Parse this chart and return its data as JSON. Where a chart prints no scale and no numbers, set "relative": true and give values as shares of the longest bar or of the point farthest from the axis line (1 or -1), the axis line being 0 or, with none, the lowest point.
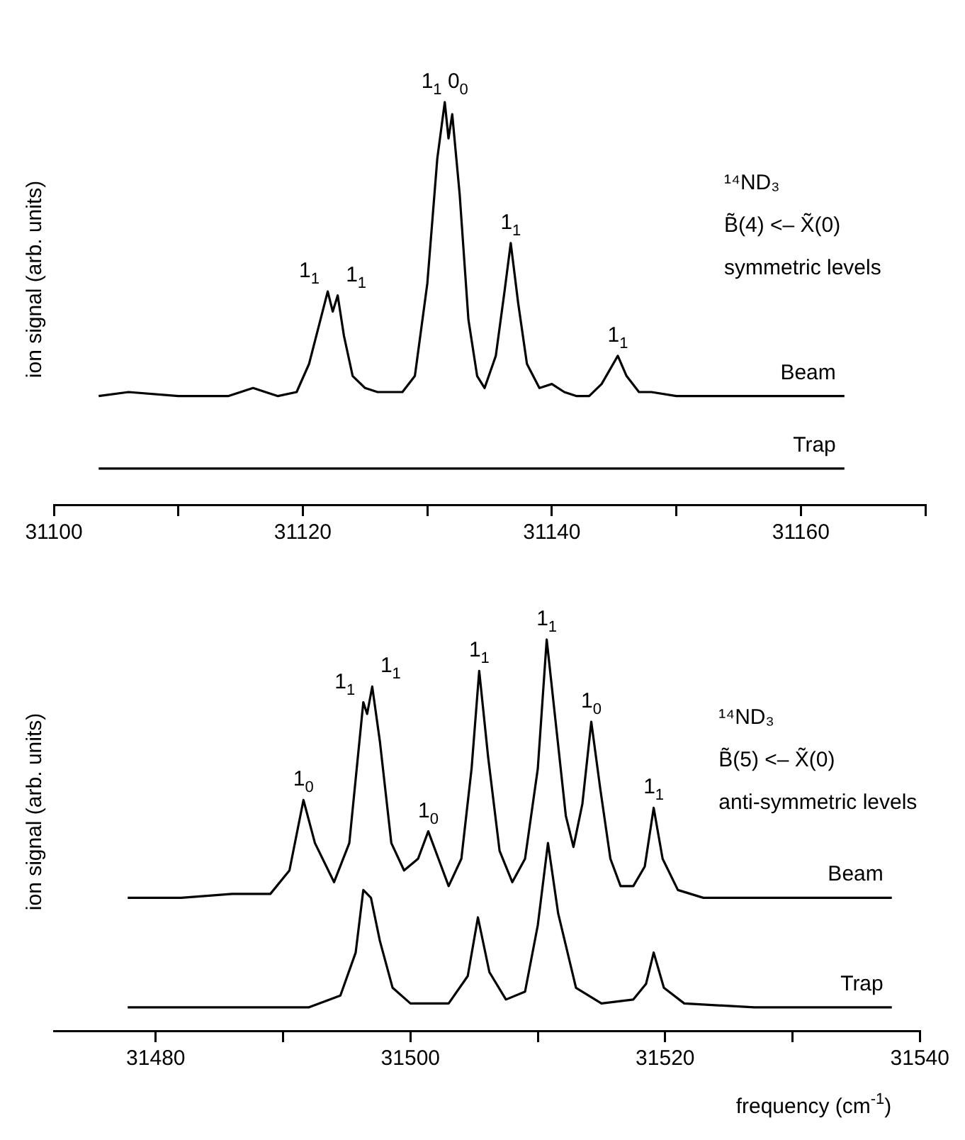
{
  "chart_data": [
    {
      "type": "line",
      "relative": true,
      "ylabel": "ion signal (arb. units)",
      "marker": "none",
      "grid": false,
      "xlim": [
        31100,
        31170
      ],
      "xticks": [
        31100,
        {
          "value": 31110,
          "label": null
        },
        31120,
        {
          "value": 31130,
          "label": null
        },
        31140,
        {
          "value": 31150,
          "label": null
        },
        31160,
        {
          "value": 31170,
          "label": null
        }
      ],
      "series": [
        {
          "name": "Beam",
          "color": "#000000",
          "x": [
            31103.6,
            31106,
            31110,
            31114,
            31116,
            31118,
            31119.5,
            31120.5,
            31121.5,
            31122.0,
            31122.4,
            31122.8,
            31123.3,
            31124,
            31125,
            31126,
            31128,
            31129,
            31130,
            31130.8,
            31131.4,
            31131.7,
            31132.0,
            31132.6,
            31133.3,
            31134,
            31134.6,
            31135.5,
            31136.2,
            31136.7,
            31137.3,
            31138,
            31139,
            31140,
            31141,
            31142,
            31143,
            31144,
            31145.3,
            31146,
            31147,
            31148,
            31150,
            31155,
            31160,
            31163.5
          ],
          "values": [
            0.27,
            0.28,
            0.27,
            0.27,
            0.29,
            0.27,
            0.28,
            0.35,
            0.47,
            0.53,
            0.48,
            0.52,
            0.42,
            0.32,
            0.29,
            0.28,
            0.28,
            0.32,
            0.55,
            0.86,
            1.0,
            0.91,
            0.97,
            0.77,
            0.46,
            0.32,
            0.29,
            0.37,
            0.53,
            0.65,
            0.5,
            0.35,
            0.29,
            0.3,
            0.28,
            0.27,
            0.27,
            0.3,
            0.37,
            0.32,
            0.28,
            0.28,
            0.27,
            0.27,
            0.27,
            0.27
          ]
        },
        {
          "name": "Trap",
          "color": "#000000",
          "x": [
            31103.6,
            31163.5
          ],
          "values": [
            0.09,
            0.09
          ]
        }
      ],
      "annotations": [
        {
          "text": "1$_{1}$",
          "x": 31122.0,
          "y": 0.53
        },
        {
          "text": "1$_{1}$",
          "x": 31122.8,
          "y": 0.52
        },
        {
          "text": "1$_{1}$ 0$_{0}$",
          "x": 31131.4,
          "y": 1.0
        },
        {
          "text": "1$_{1}$",
          "x": 31136.7,
          "y": 0.65
        },
        {
          "text": "1$_{1}$",
          "x": 31145.3,
          "y": 0.37
        },
        "¹⁴ND₃",
        "B̃(4) <– X̃(0)",
        "symmetric levels"
      ]
    },
    {
      "type": "line",
      "relative": true,
      "ylabel": "ion signal (arb. units)",
      "xlabel": "frequency (cm$^{-1}$)",
      "marker": "none",
      "grid": false,
      "xlim": [
        31472,
        31540
      ],
      "xticks": [
        31480,
        {
          "value": 31490,
          "label": null
        },
        31500,
        {
          "value": 31510,
          "label": null
        },
        31520,
        {
          "value": 31530,
          "label": null
        },
        31540
      ],
      "series": [
        {
          "name": "Beam",
          "color": "#000000",
          "x": [
            31477.8,
            31482,
            31486,
            31489,
            31490.5,
            31491.6,
            31492.5,
            31494,
            31495.2,
            31496.3,
            31496.6,
            31497.0,
            31497.6,
            31498.5,
            31499.5,
            31500.6,
            31501.4,
            31502.2,
            31503,
            31504,
            31504.8,
            31505.4,
            31506.1,
            31507,
            31508,
            31509,
            31510.0,
            31510.7,
            31511.4,
            31512.2,
            31512.8,
            31513.5,
            31514.2,
            31514.9,
            31515.7,
            31516.5,
            31517.5,
            31518.4,
            31519.1,
            31519.8,
            31521,
            31523,
            31527,
            31532,
            31537.8
          ],
          "values": [
            0.34,
            0.34,
            0.35,
            0.35,
            0.41,
            0.59,
            0.48,
            0.38,
            0.48,
            0.84,
            0.81,
            0.88,
            0.74,
            0.48,
            0.41,
            0.44,
            0.51,
            0.44,
            0.37,
            0.44,
            0.67,
            0.92,
            0.7,
            0.46,
            0.38,
            0.44,
            0.67,
            1.0,
            0.79,
            0.55,
            0.47,
            0.58,
            0.79,
            0.62,
            0.44,
            0.37,
            0.37,
            0.42,
            0.57,
            0.44,
            0.36,
            0.34,
            0.34,
            0.34,
            0.34
          ]
        },
        {
          "name": "Trap",
          "color": "#000000",
          "x": [
            31477.8,
            31485,
            31492,
            31494.5,
            31495.7,
            31496.3,
            31496.9,
            31497.6,
            31498.6,
            31500,
            31503,
            31504.5,
            31505.3,
            31506.2,
            31507.5,
            31509,
            31510.0,
            31510.8,
            31511.6,
            31513,
            31515,
            31517.5,
            31518.5,
            31519.1,
            31519.9,
            31521.5,
            31527,
            31537.8
          ],
          "values": [
            0.06,
            0.06,
            0.06,
            0.09,
            0.2,
            0.36,
            0.34,
            0.23,
            0.11,
            0.07,
            0.07,
            0.14,
            0.29,
            0.15,
            0.08,
            0.1,
            0.27,
            0.48,
            0.3,
            0.11,
            0.07,
            0.08,
            0.12,
            0.2,
            0.11,
            0.07,
            0.06,
            0.06
          ]
        }
      ],
      "annotations": [
        {
          "text": "1$_{0}$",
          "x": 31491.6,
          "y": 0.59
        },
        {
          "text": "1$_{1}$",
          "x": 31496.3,
          "y": 0.84
        },
        {
          "text": "1$_{1}$",
          "x": 31497.0,
          "y": 0.88
        },
        {
          "text": "1$_{0}$",
          "x": 31501.4,
          "y": 0.51
        },
        {
          "text": "1$_{1}$",
          "x": 31505.4,
          "y": 0.92
        },
        {
          "text": "1$_{1}$",
          "x": 31510.7,
          "y": 1.0
        },
        {
          "text": "1$_{0}$",
          "x": 31514.2,
          "y": 0.79
        },
        {
          "text": "1$_{1}$",
          "x": 31519.1,
          "y": 0.57
        },
        "¹⁴ND₃",
        "B̃(5) <– X̃(0)",
        "anti-symmetric levels"
      ]
    }
  ]
}
